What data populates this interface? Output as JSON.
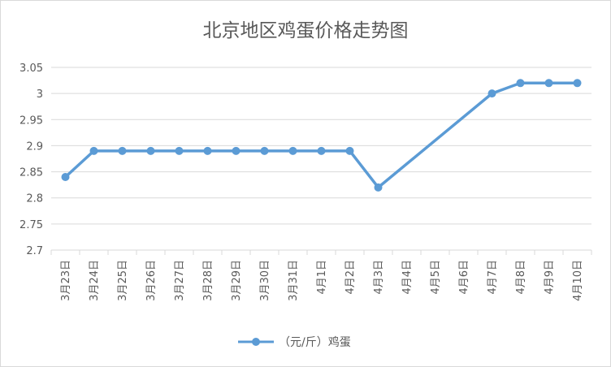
{
  "chart_data": {
    "type": "line",
    "title": "北京地区鸡蛋价格走势图",
    "xlabel": "",
    "ylabel": "",
    "ylim": [
      2.7,
      3.05
    ],
    "yticks": [
      "3.05",
      "3",
      "2.95",
      "2.9",
      "2.85",
      "2.8",
      "2.75",
      "2.7"
    ],
    "grid": "horizontal",
    "legend_position": "bottom",
    "categories": [
      "3月23日",
      "3月24日",
      "3月25日",
      "3月26日",
      "3月27日",
      "3月28日",
      "3月29日",
      "3月30日",
      "3月31日",
      "4月1日",
      "4月2日",
      "4月3日",
      "4月4日",
      "4月5日",
      "4月6日",
      "4月7日",
      "4月8日",
      "4月9日",
      "4月10日"
    ],
    "series": [
      {
        "name": "（元/斤）鸡蛋",
        "color": "#5b9bd5",
        "values": [
          2.84,
          2.89,
          2.89,
          2.89,
          2.89,
          2.89,
          2.89,
          2.89,
          2.89,
          2.89,
          2.89,
          2.82,
          null,
          null,
          null,
          3.0,
          3.02,
          3.02,
          3.02
        ]
      }
    ]
  }
}
